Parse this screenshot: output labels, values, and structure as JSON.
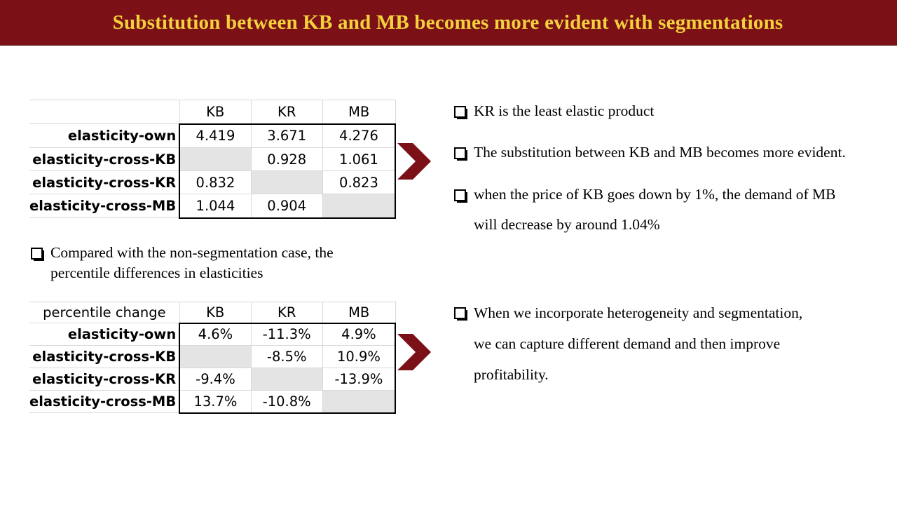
{
  "title": "Substitution between KB and MB becomes more evident with segmentations",
  "colors": {
    "title_bg": "#7b1016",
    "title_text": "#f2d23c",
    "chevron": "#7b1016"
  },
  "table1": {
    "corner": "",
    "columns": [
      "KB",
      "KR",
      "MB"
    ],
    "rows": [
      {
        "label": "elasticity-own",
        "values": [
          "4.419",
          "3.671",
          "4.276"
        ]
      },
      {
        "label": "elasticity-cross-KB",
        "values": [
          "",
          "0.928",
          "1.061"
        ]
      },
      {
        "label": "elasticity-cross-KR",
        "values": [
          "0.832",
          "",
          "0.823"
        ]
      },
      {
        "label": "elasticity-cross-MB",
        "values": [
          "1.044",
          "0.904",
          ""
        ]
      }
    ]
  },
  "middle_bullet": {
    "line1": "Compared with the non-segmentation case, the",
    "line2": "percentile differences in elasticities"
  },
  "table2": {
    "corner": "percentile change",
    "columns": [
      "KB",
      "KR",
      "MB"
    ],
    "rows": [
      {
        "label": "elasticity-own",
        "values": [
          "4.6%",
          "-11.3%",
          "4.9%"
        ]
      },
      {
        "label": "elasticity-cross-KB",
        "values": [
          "",
          "-8.5%",
          "10.9%"
        ]
      },
      {
        "label": "elasticity-cross-KR",
        "values": [
          "-9.4%",
          "",
          "-13.9%"
        ]
      },
      {
        "label": "elasticity-cross-MB",
        "values": [
          "13.7%",
          "-10.8%",
          ""
        ]
      }
    ]
  },
  "right_top": {
    "b1": "KR is the least elastic product",
    "b2": "The substitution between KB and MB becomes more evident.",
    "b3_line1": "when the price of KB goes down by 1%, the demand of MB",
    "b3_line2": "will decrease by around 1.04%"
  },
  "right_bottom": {
    "line1": "When we incorporate heterogeneity and segmentation,",
    "line2": "we can capture different demand and then improve",
    "line3": "profitability."
  }
}
